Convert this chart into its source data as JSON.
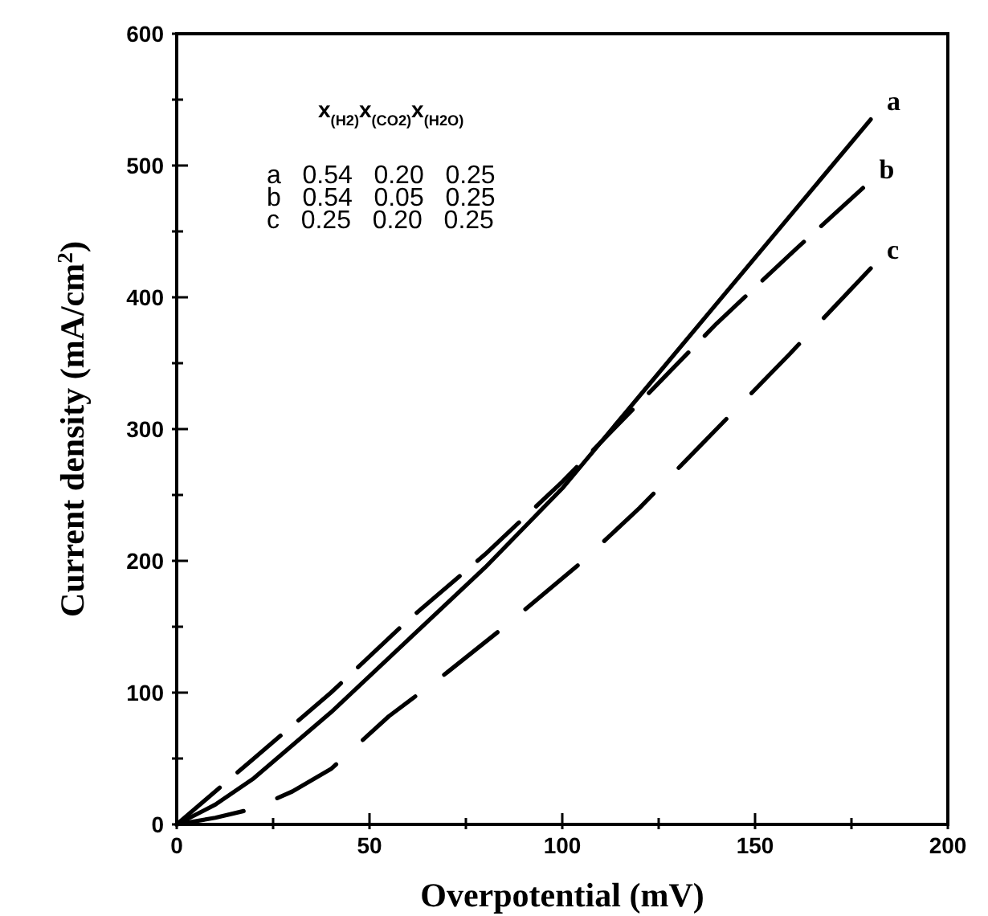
{
  "chart_data": {
    "type": "line",
    "xlabel": "Overpotential (mV)",
    "ylabel": "Current density (mA/cm$^{2}$)",
    "xlim": [
      0,
      200
    ],
    "ylim": [
      0,
      600
    ],
    "xticks": [
      0,
      {
        "value": 25,
        "label": null
      },
      50,
      {
        "value": 75,
        "label": null
      },
      100,
      {
        "value": 125,
        "label": null
      },
      150,
      {
        "value": 175,
        "label": null
      },
      200
    ],
    "yticks": [
      0,
      {
        "value": 50,
        "label": null
      },
      100,
      {
        "value": 150,
        "label": null
      },
      200,
      {
        "value": 250,
        "label": null
      },
      300,
      {
        "value": 350,
        "label": null
      },
      400,
      {
        "value": 450,
        "label": null
      },
      500,
      {
        "value": 550,
        "label": null
      },
      600
    ],
    "grid": false,
    "legend": false,
    "marker": "none",
    "annotations": [
      "x$_{(H2)}$x$_{(CO2)}$x$_{(H2O)}$",
      "a   0.54   0.20   0.25",
      "b   0.54   0.05   0.25",
      "c   0.25   0.20   0.25"
    ],
    "series": [
      {
        "name": "a",
        "color": "#000000",
        "line_style": "solid",
        "x": [
          0,
          10,
          20,
          40,
          60,
          80,
          100,
          120,
          140,
          160,
          180
        ],
        "values": [
          0,
          15,
          35,
          85,
          140,
          195,
          255,
          325,
          395,
          465,
          535
        ]
      },
      {
        "name": "b",
        "color": "#000000",
        "line_style": "dashed",
        "x": [
          0,
          20,
          40,
          60,
          80,
          100,
          120,
          140,
          160,
          178
        ],
        "values": [
          0,
          50,
          100,
          155,
          205,
          260,
          320,
          380,
          435,
          483
        ]
      },
      {
        "name": "c",
        "color": "#000000",
        "line_style": "dashed",
        "x": [
          0,
          10,
          20,
          30,
          40,
          55,
          70,
          85,
          105,
          120,
          132,
          145,
          159,
          180
        ],
        "values": [
          0,
          5,
          12,
          25,
          42,
          82,
          115,
          150,
          199,
          240,
          276,
          315,
          357,
          422
        ]
      }
    ]
  }
}
